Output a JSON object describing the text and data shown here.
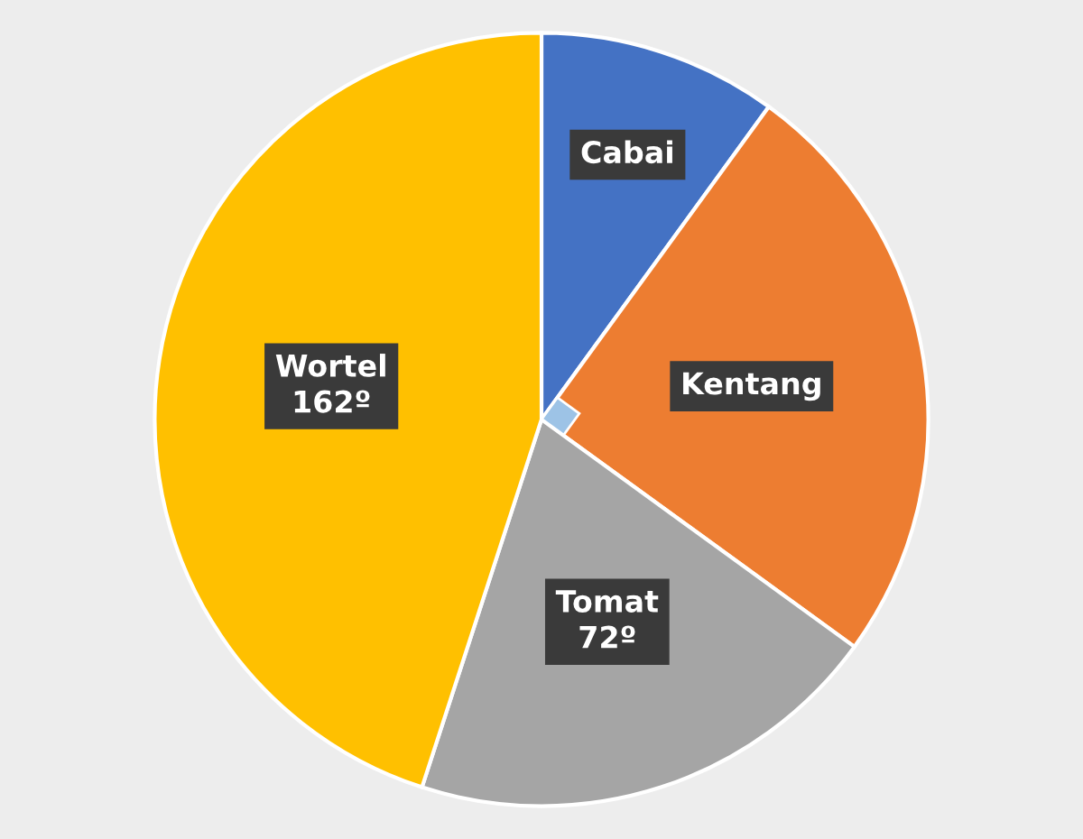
{
  "chart_data": {
    "type": "pie",
    "categories": [
      "Cabai",
      "Kentang",
      "Tomat",
      "Wortel"
    ],
    "values": [
      36,
      90,
      72,
      162
    ],
    "value_labels": [
      null,
      null,
      "72º",
      "162º"
    ],
    "colors": [
      "#4472c4",
      "#ed7d31",
      "#a5a5a5",
      "#ffc000"
    ],
    "legend": false
  }
}
